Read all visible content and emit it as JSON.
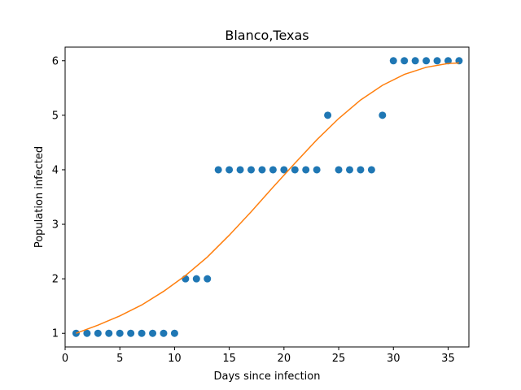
{
  "chart_data": {
    "type": "scatter",
    "title": "Blanco,Texas",
    "xlabel": "Days since infection",
    "ylabel": "Population infected",
    "xlim": [
      0,
      36.9
    ],
    "ylim": [
      0.75,
      6.25
    ],
    "xticks": [
      0,
      5,
      10,
      15,
      20,
      25,
      30,
      35
    ],
    "yticks": [
      1,
      2,
      3,
      4,
      5,
      6
    ],
    "grid": false,
    "series": [
      {
        "kind": "scatter",
        "color": "#1f77b4",
        "x": [
          1,
          2,
          3,
          4,
          5,
          6,
          7,
          8,
          9,
          10,
          11,
          12,
          13,
          14,
          15,
          16,
          17,
          18,
          19,
          20,
          21,
          22,
          23,
          24,
          25,
          26,
          27,
          28,
          29,
          30,
          31,
          32,
          33,
          34,
          35,
          36
        ],
        "y": [
          1,
          1,
          1,
          1,
          1,
          1,
          1,
          1,
          1,
          1,
          2,
          2,
          2,
          4,
          4,
          4,
          4,
          4,
          4,
          4,
          4,
          4,
          4,
          5,
          4,
          4,
          4,
          4,
          5,
          6,
          6,
          6,
          6,
          6,
          6,
          6
        ]
      },
      {
        "kind": "line",
        "color": "#ff7f0e",
        "x": [
          1,
          3,
          5,
          7,
          9,
          11,
          13,
          15,
          17,
          19,
          21,
          23,
          25,
          27,
          29,
          31,
          33,
          35,
          36
        ],
        "y": [
          1.0,
          1.15,
          1.32,
          1.52,
          1.77,
          2.06,
          2.4,
          2.8,
          3.23,
          3.68,
          4.12,
          4.55,
          4.94,
          5.28,
          5.55,
          5.75,
          5.88,
          5.95,
          5.96
        ]
      }
    ]
  }
}
